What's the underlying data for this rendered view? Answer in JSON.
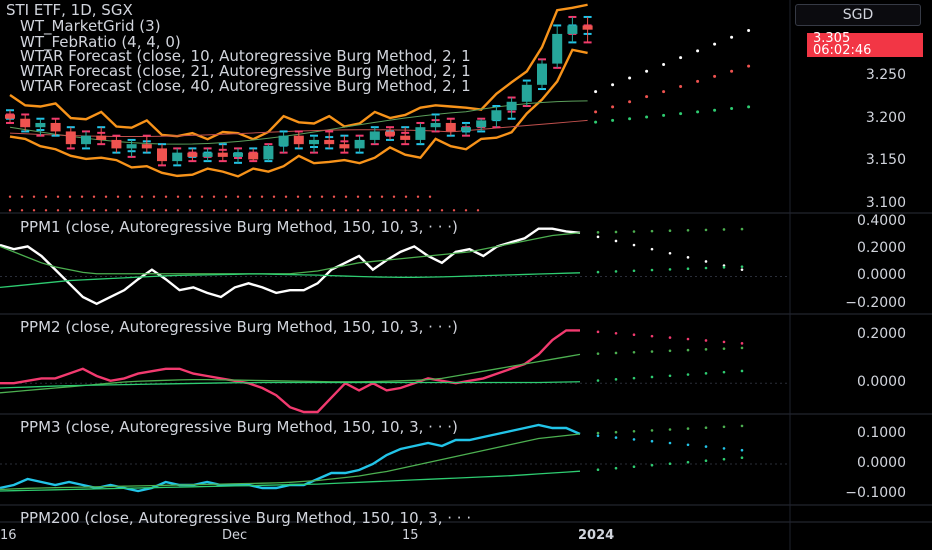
{
  "currency_button": "SGD",
  "price_tag": {
    "price": "3.305",
    "countdown": "06:02:46"
  },
  "legend": {
    "symbol": "STI ETF, 1D, SGX",
    "line1": "WT_MarketGrid (3)",
    "line2": "WT_FebRatio (4, 4, 0)",
    "line3": "WTAR Forecast (close, 10, Autoregressive Burg Method, 2, 1",
    "line4": "WTAR Forecast (close, 21, Autoregressive Burg Method, 2, 1",
    "line5": "WTAR Forecast (close, 40, Autoregressive Burg Method, 2, 1"
  },
  "pane_titles": {
    "ppm1": "PPM1 (close, Autoregressive Burg Method, 150, 10, 3, · · ·)",
    "ppm2": "PPM2 (close, Autoregressive Burg Method, 150, 10, 3, · · ·)",
    "ppm3": "PPM3 (close, Autoregressive Burg Method, 150, 10, 3, · · ·)",
    "ppm200": "PPM200 (close, Autoregressive Burg Method, 150, 10, 3, · · ·"
  },
  "colors": {
    "up": "#26a69a",
    "down": "#ef5350",
    "cyan": "#22c4e8",
    "orange": "#f7931a",
    "pink": "#f23a6f",
    "green": "#4caf50",
    "lime": "#2ecc71",
    "purple": "#9c27b0"
  },
  "chart_data": [
    {
      "type": "candlestick",
      "title": "STI ETF, 1D, SGX",
      "ylim": [
        3.09,
        3.34
      ],
      "y_ticks": [
        "3.250",
        "3.200",
        "3.150",
        "3.100"
      ],
      "y_tick_values": [
        3.25,
        3.2,
        3.15,
        3.1
      ],
      "x_labels": [
        "16",
        "Dec",
        "15",
        "2024"
      ],
      "last_price": 3.305,
      "candles": [
        [
          3.205,
          3.21,
          3.195,
          3.2
        ],
        [
          3.2,
          3.205,
          3.185,
          3.19
        ],
        [
          3.19,
          3.2,
          3.18,
          3.195
        ],
        [
          3.195,
          3.2,
          3.18,
          3.185
        ],
        [
          3.185,
          3.19,
          3.165,
          3.17
        ],
        [
          3.17,
          3.185,
          3.165,
          3.18
        ],
        [
          3.18,
          3.19,
          3.17,
          3.175
        ],
        [
          3.175,
          3.18,
          3.16,
          3.165
        ],
        [
          3.165,
          3.175,
          3.155,
          3.17
        ],
        [
          3.17,
          3.18,
          3.16,
          3.165
        ],
        [
          3.165,
          3.17,
          3.145,
          3.15
        ],
        [
          3.15,
          3.165,
          3.145,
          3.16
        ],
        [
          3.16,
          3.165,
          3.15,
          3.155
        ],
        [
          3.155,
          3.165,
          3.15,
          3.16
        ],
        [
          3.16,
          3.17,
          3.15,
          3.155
        ],
        [
          3.155,
          3.165,
          3.148,
          3.16
        ],
        [
          3.16,
          3.165,
          3.15,
          3.152
        ],
        [
          3.152,
          3.17,
          3.15,
          3.168
        ],
        [
          3.168,
          3.185,
          3.16,
          3.18
        ],
        [
          3.18,
          3.185,
          3.165,
          3.17
        ],
        [
          3.17,
          3.18,
          3.16,
          3.175
        ],
        [
          3.175,
          3.185,
          3.165,
          3.17
        ],
        [
          3.17,
          3.18,
          3.16,
          3.165
        ],
        [
          3.165,
          3.18,
          3.16,
          3.175
        ],
        [
          3.175,
          3.19,
          3.17,
          3.185
        ],
        [
          3.185,
          3.19,
          3.175,
          3.18
        ],
        [
          3.18,
          3.19,
          3.17,
          3.175
        ],
        [
          3.175,
          3.195,
          3.17,
          3.19
        ],
        [
          3.19,
          3.205,
          3.185,
          3.195
        ],
        [
          3.195,
          3.2,
          3.18,
          3.185
        ],
        [
          3.185,
          3.195,
          3.18,
          3.19
        ],
        [
          3.19,
          3.2,
          3.185,
          3.198
        ],
        [
          3.198,
          3.215,
          3.19,
          3.21
        ],
        [
          3.21,
          3.225,
          3.2,
          3.22
        ],
        [
          3.22,
          3.245,
          3.215,
          3.24
        ],
        [
          3.24,
          3.27,
          3.235,
          3.265
        ],
        [
          3.265,
          3.31,
          3.26,
          3.3
        ],
        [
          3.3,
          3.32,
          3.29,
          3.31
        ],
        [
          3.31,
          3.32,
          3.29,
          3.305
        ]
      ],
      "forecast_white": [
        3.232,
        3.24,
        3.248,
        3.256,
        3.264,
        3.272,
        3.28,
        3.288,
        3.296,
        3.304
      ],
      "forecast_red": [
        3.208,
        3.214,
        3.22,
        3.226,
        3.232,
        3.238,
        3.244,
        3.25,
        3.256,
        3.262
      ],
      "forecast_green": [
        3.196,
        3.198,
        3.2,
        3.202,
        3.204,
        3.206,
        3.208,
        3.21,
        3.212,
        3.214
      ]
    },
    {
      "type": "line",
      "title": "PPM1 (close, Autoregressive Burg Method, 150, 10, 3, · · ·)",
      "ylim": [
        -0.26,
        0.45
      ],
      "y_ticks": [
        "0.4000",
        "0.2000",
        "0.0000",
        "−0.2000"
      ],
      "y_tick_values": [
        0.4,
        0.2,
        0.0,
        -0.2
      ],
      "series": [
        {
          "values": [
            0.23,
            0.2,
            0.22,
            0.15,
            0.05,
            -0.05,
            -0.15,
            -0.2,
            -0.15,
            -0.1,
            -0.02,
            0.05,
            -0.02,
            -0.1,
            -0.08,
            -0.12,
            -0.15,
            -0.08,
            -0.05,
            -0.08,
            -0.12,
            -0.1,
            -0.1,
            -0.05,
            0.05,
            0.1,
            0.15,
            0.05,
            0.12,
            0.18,
            0.22,
            0.15,
            0.1,
            0.18,
            0.2,
            0.15,
            0.22,
            0.25,
            0.28,
            0.35,
            0.35,
            0.33,
            0.32
          ]
        },
        {
          "values": [
            0.22,
            0.18,
            0.14,
            0.1,
            0.07,
            0.05,
            0.03,
            0.02,
            0.02,
            0.02,
            0.02,
            0.02,
            0.02,
            0.02,
            0.02,
            0.02,
            0.02,
            0.02,
            0.02,
            0.02,
            0.02,
            0.02,
            0.03,
            0.04,
            0.06,
            0.08,
            0.1,
            0.11,
            0.12,
            0.13,
            0.14,
            0.15,
            0.16,
            0.17,
            0.18,
            0.2,
            0.22,
            0.24,
            0.26,
            0.28,
            0.3,
            0.31,
            0.32
          ]
        },
        {
          "values": [
            -0.08,
            -0.07,
            -0.06,
            -0.05,
            -0.04,
            -0.03,
            -0.025,
            -0.02,
            -0.015,
            -0.01,
            -0.005,
            0,
            0.005,
            0.008,
            0.01,
            0.012,
            0.014,
            0.016,
            0.018,
            0.018,
            0.016,
            0.014,
            0.012,
            0.01,
            0.006,
            0.003,
            0,
            -0.003,
            -0.005,
            -0.006,
            -0.006,
            -0.005,
            -0.003,
            0,
            0.003,
            0.006,
            0.009,
            0.012,
            0.015,
            0.018,
            0.021,
            0.024,
            0.027
          ]
        }
      ]
    },
    {
      "type": "line",
      "title": "PPM2 (close, Autoregressive Burg Method, 150, 10, 3, · · ·)",
      "ylim": [
        -0.12,
        0.28
      ],
      "y_ticks": [
        "0.2000",
        "0.0000"
      ],
      "y_tick_values": [
        0.2,
        0.0
      ],
      "series": [
        {
          "values": [
            0.0,
            0.0,
            0.01,
            0.02,
            0.02,
            0.04,
            0.06,
            0.03,
            0.01,
            0.02,
            0.04,
            0.05,
            0.06,
            0.06,
            0.04,
            0.03,
            0.02,
            0.01,
            0.0,
            -0.02,
            -0.05,
            -0.1,
            -0.12,
            -0.12,
            -0.06,
            0.0,
            -0.03,
            0.0,
            -0.03,
            -0.02,
            0.0,
            0.02,
            0.01,
            0.0,
            0.01,
            0.02,
            0.04,
            0.06,
            0.08,
            0.12,
            0.18,
            0.22,
            0.22
          ]
        },
        {
          "values": [
            -0.04,
            -0.035,
            -0.03,
            -0.025,
            -0.02,
            -0.015,
            -0.01,
            -0.005,
            0,
            0.005,
            0.008,
            0.01,
            0.012,
            0.014,
            0.015,
            0.015,
            0.014,
            0.013,
            0.012,
            0.011,
            0.01,
            0.009,
            0.008,
            0.007,
            0.006,
            0.006,
            0.006,
            0.007,
            0.008,
            0.01,
            0.012,
            0.015,
            0.02,
            0.03,
            0.04,
            0.05,
            0.06,
            0.07,
            0.08,
            0.09,
            0.1,
            0.11,
            0.12
          ]
        },
        {
          "values": [
            -0.02,
            -0.018,
            -0.016,
            -0.014,
            -0.012,
            -0.01,
            -0.009,
            -0.008,
            -0.007,
            -0.006,
            -0.005,
            -0.004,
            -0.003,
            -0.002,
            -0.001,
            0,
            0.001,
            0.002,
            0.002,
            0.003,
            0.003,
            0.003,
            0.003,
            0.003,
            0.003,
            0.003,
            0.003,
            0.003,
            0.003,
            0.003,
            0.003,
            0.003,
            0.003,
            0.003,
            0.003,
            0.003,
            0.003,
            0.003,
            0.003,
            0.003,
            0.004,
            0.005,
            0.006
          ]
        }
      ]
    },
    {
      "type": "line",
      "title": "PPM3 (close, Autoregressive Burg Method, 150, 10, 3, · · ·)",
      "ylim": [
        -0.13,
        0.16
      ],
      "y_ticks": [
        "0.1000",
        "0.0000",
        "−0.1000"
      ],
      "y_tick_values": [
        0.1,
        0.0,
        -0.1
      ],
      "series": [
        {
          "values": [
            -0.08,
            -0.07,
            -0.05,
            -0.06,
            -0.07,
            -0.06,
            -0.07,
            -0.08,
            -0.07,
            -0.08,
            -0.09,
            -0.08,
            -0.06,
            -0.07,
            -0.07,
            -0.06,
            -0.07,
            -0.07,
            -0.07,
            -0.08,
            -0.08,
            -0.07,
            -0.07,
            -0.05,
            -0.03,
            -0.03,
            -0.02,
            0.0,
            0.03,
            0.05,
            0.06,
            0.07,
            0.06,
            0.08,
            0.08,
            0.09,
            0.1,
            0.11,
            0.12,
            0.13,
            0.12,
            0.12,
            0.1
          ]
        },
        {
          "values": [
            -0.085,
            -0.083,
            -0.081,
            -0.08,
            -0.079,
            -0.078,
            -0.077,
            -0.076,
            -0.075,
            -0.074,
            -0.073,
            -0.072,
            -0.071,
            -0.07,
            -0.069,
            -0.068,
            -0.067,
            -0.066,
            -0.065,
            -0.064,
            -0.063,
            -0.061,
            -0.058,
            -0.055,
            -0.05,
            -0.045,
            -0.04,
            -0.032,
            -0.025,
            -0.015,
            -0.005,
            0.005,
            0.015,
            0.025,
            0.035,
            0.045,
            0.055,
            0.065,
            0.075,
            0.085,
            0.09,
            0.095,
            0.1
          ]
        },
        {
          "values": [
            -0.09,
            -0.089,
            -0.088,
            -0.087,
            -0.086,
            -0.085,
            -0.084,
            -0.083,
            -0.082,
            -0.081,
            -0.08,
            -0.079,
            -0.078,
            -0.077,
            -0.076,
            -0.075,
            -0.074,
            -0.073,
            -0.072,
            -0.071,
            -0.07,
            -0.069,
            -0.068,
            -0.067,
            -0.065,
            -0.063,
            -0.061,
            -0.059,
            -0.057,
            -0.055,
            -0.053,
            -0.051,
            -0.049,
            -0.047,
            -0.045,
            -0.043,
            -0.041,
            -0.039,
            -0.036,
            -0.033,
            -0.03,
            -0.027,
            -0.024
          ]
        }
      ]
    }
  ]
}
